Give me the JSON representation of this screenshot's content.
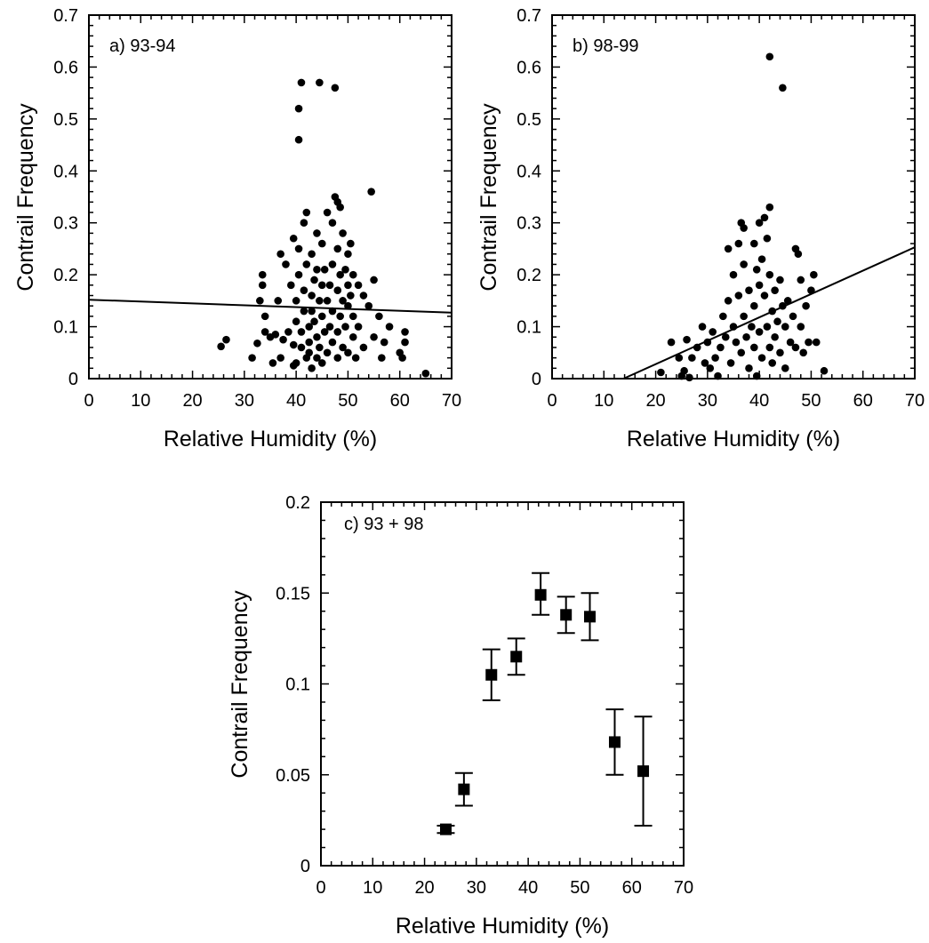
{
  "chart_data": [
    {
      "type": "scatter",
      "panel_label": "a) 93-94",
      "xlabel": "Relative Humidity (%)",
      "ylabel": "Contrail Frequency",
      "xlim": [
        0,
        70
      ],
      "ylim": [
        0,
        0.7
      ],
      "xticks": [
        "0",
        "10",
        "20",
        "30",
        "40",
        "50",
        "60",
        "70"
      ],
      "yticks": [
        "0",
        "0.1",
        "0.2",
        "0.3",
        "0.4",
        "0.5",
        "0.6",
        "0.7"
      ],
      "fit_line": {
        "x": [
          0,
          70
        ],
        "y": [
          0.152,
          0.127
        ]
      },
      "points": [
        [
          25.5,
          0.062
        ],
        [
          26.5,
          0.075
        ],
        [
          31.5,
          0.04
        ],
        [
          32.5,
          0.068
        ],
        [
          33,
          0.15
        ],
        [
          33.5,
          0.18
        ],
        [
          33.5,
          0.2
        ],
        [
          34,
          0.09
        ],
        [
          34,
          0.12
        ],
        [
          35,
          0.08
        ],
        [
          35.5,
          0.03
        ],
        [
          36,
          0.085
        ],
        [
          36.5,
          0.15
        ],
        [
          37,
          0.24
        ],
        [
          37,
          0.04
        ],
        [
          37.5,
          0.075
        ],
        [
          38,
          0.22
        ],
        [
          38.5,
          0.09
        ],
        [
          39,
          0.18
        ],
        [
          39.5,
          0.27
        ],
        [
          39.5,
          0.065
        ],
        [
          39.5,
          0.025
        ],
        [
          40,
          0.15
        ],
        [
          40,
          0.11
        ],
        [
          40,
          0.03
        ],
        [
          40.5,
          0.2
        ],
        [
          40.5,
          0.25
        ],
        [
          40.5,
          0.46
        ],
        [
          40.5,
          0.52
        ],
        [
          41,
          0.57
        ],
        [
          41,
          0.06
        ],
        [
          41,
          0.09
        ],
        [
          41.5,
          0.3
        ],
        [
          41.5,
          0.17
        ],
        [
          41.5,
          0.13
        ],
        [
          42,
          0.32
        ],
        [
          42,
          0.22
        ],
        [
          42,
          0.04
        ],
        [
          42.5,
          0.1
        ],
        [
          42.5,
          0.07
        ],
        [
          42.5,
          0.05
        ],
        [
          43,
          0.16
        ],
        [
          43,
          0.24
        ],
        [
          43,
          0.13
        ],
        [
          43,
          0.02
        ],
        [
          43.5,
          0.19
        ],
        [
          43.5,
          0.11
        ],
        [
          44,
          0.28
        ],
        [
          44,
          0.21
        ],
        [
          44,
          0.08
        ],
        [
          44,
          0.04
        ],
        [
          44.5,
          0.57
        ],
        [
          44.5,
          0.15
        ],
        [
          44.5,
          0.06
        ],
        [
          45,
          0.26
        ],
        [
          45,
          0.18
        ],
        [
          45,
          0.12
        ],
        [
          45,
          0.03
        ],
        [
          45.5,
          0.21
        ],
        [
          45.5,
          0.09
        ],
        [
          46,
          0.32
        ],
        [
          46,
          0.15
        ],
        [
          46,
          0.05
        ],
        [
          46.5,
          0.1
        ],
        [
          46.5,
          0.18
        ],
        [
          47,
          0.3
        ],
        [
          47,
          0.22
        ],
        [
          47,
          0.13
        ],
        [
          47,
          0.07
        ],
        [
          47.5,
          0.56
        ],
        [
          47.5,
          0.35
        ],
        [
          48,
          0.34
        ],
        [
          48,
          0.25
        ],
        [
          48,
          0.17
        ],
        [
          48,
          0.09
        ],
        [
          48,
          0.04
        ],
        [
          48.5,
          0.33
        ],
        [
          48.5,
          0.2
        ],
        [
          48.5,
          0.12
        ],
        [
          49,
          0.28
        ],
        [
          49,
          0.15
        ],
        [
          49,
          0.06
        ],
        [
          49.5,
          0.21
        ],
        [
          49.5,
          0.1
        ],
        [
          50,
          0.24
        ],
        [
          50,
          0.18
        ],
        [
          50,
          0.14
        ],
        [
          50,
          0.05
        ],
        [
          50.5,
          0.26
        ],
        [
          50.5,
          0.16
        ],
        [
          51,
          0.2
        ],
        [
          51,
          0.12
        ],
        [
          51,
          0.08
        ],
        [
          51.5,
          0.04
        ],
        [
          52,
          0.18
        ],
        [
          52,
          0.1
        ],
        [
          53,
          0.16
        ],
        [
          53,
          0.06
        ],
        [
          54,
          0.14
        ],
        [
          54.5,
          0.36
        ],
        [
          55,
          0.08
        ],
        [
          55,
          0.19
        ],
        [
          56,
          0.12
        ],
        [
          56.5,
          0.04
        ],
        [
          57,
          0.07
        ],
        [
          58,
          0.1
        ],
        [
          60,
          0.05
        ],
        [
          60.5,
          0.04
        ],
        [
          61,
          0.07
        ],
        [
          61,
          0.09
        ],
        [
          65,
          0.01
        ]
      ]
    },
    {
      "type": "scatter",
      "panel_label": "b) 98-99",
      "xlabel": "Relative Humidity (%)",
      "ylabel": "Contrail Frequency",
      "xlim": [
        0,
        70
      ],
      "ylim": [
        0,
        0.7
      ],
      "xticks": [
        "0",
        "10",
        "20",
        "30",
        "40",
        "50",
        "60",
        "70"
      ],
      "yticks": [
        "0",
        "0.1",
        "0.2",
        "0.3",
        "0.4",
        "0.5",
        "0.6",
        "0.7"
      ],
      "fit_line": {
        "x": [
          13.8,
          70
        ],
        "y": [
          0,
          0.253
        ]
      },
      "points": [
        [
          21,
          0.012
        ],
        [
          23,
          0.07
        ],
        [
          24.5,
          0.04
        ],
        [
          25,
          0.005
        ],
        [
          25.5,
          0.015
        ],
        [
          26,
          0.075
        ],
        [
          26.5,
          0.002
        ],
        [
          27,
          0.04
        ],
        [
          28,
          0.06
        ],
        [
          29,
          0.1
        ],
        [
          29.5,
          0.03
        ],
        [
          30,
          0.07
        ],
        [
          30.5,
          0.02
        ],
        [
          31,
          0.09
        ],
        [
          31.5,
          0.04
        ],
        [
          32,
          0.005
        ],
        [
          32.5,
          0.06
        ],
        [
          33,
          0.12
        ],
        [
          33.5,
          0.08
        ],
        [
          34,
          0.25
        ],
        [
          34,
          0.15
        ],
        [
          34.5,
          0.03
        ],
        [
          35,
          0.2
        ],
        [
          35,
          0.1
        ],
        [
          35.5,
          0.07
        ],
        [
          36,
          0.26
        ],
        [
          36,
          0.16
        ],
        [
          36.5,
          0.3
        ],
        [
          36.5,
          0.05
        ],
        [
          37,
          0.29
        ],
        [
          37,
          0.22
        ],
        [
          37,
          0.12
        ],
        [
          37.5,
          0.08
        ],
        [
          38,
          0.17
        ],
        [
          38,
          0.02
        ],
        [
          38.5,
          0.1
        ],
        [
          39,
          0.26
        ],
        [
          39,
          0.14
        ],
        [
          39,
          0.06
        ],
        [
          39.5,
          0.21
        ],
        [
          39.5,
          0.005
        ],
        [
          40,
          0.3
        ],
        [
          40,
          0.18
        ],
        [
          40,
          0.09
        ],
        [
          40.5,
          0.23
        ],
        [
          40.5,
          0.04
        ],
        [
          41,
          0.31
        ],
        [
          41,
          0.16
        ],
        [
          41.5,
          0.27
        ],
        [
          41.5,
          0.1
        ],
        [
          42,
          0.62
        ],
        [
          42,
          0.33
        ],
        [
          42,
          0.2
        ],
        [
          42,
          0.06
        ],
        [
          42.5,
          0.13
        ],
        [
          42.5,
          0.03
        ],
        [
          43,
          0.17
        ],
        [
          43,
          0.08
        ],
        [
          43.5,
          0.11
        ],
        [
          44,
          0.19
        ],
        [
          44,
          0.05
        ],
        [
          44.5,
          0.56
        ],
        [
          44.5,
          0.14
        ],
        [
          45,
          0.1
        ],
        [
          45,
          0.02
        ],
        [
          45.5,
          0.15
        ],
        [
          46,
          0.07
        ],
        [
          46.5,
          0.12
        ],
        [
          47,
          0.25
        ],
        [
          47,
          0.06
        ],
        [
          47.5,
          0.24
        ],
        [
          48,
          0.19
        ],
        [
          48,
          0.1
        ],
        [
          48.5,
          0.05
        ],
        [
          49,
          0.14
        ],
        [
          49.5,
          0.07
        ],
        [
          50,
          0.17
        ],
        [
          50.5,
          0.2
        ],
        [
          51,
          0.07
        ],
        [
          52.5,
          0.015
        ]
      ]
    },
    {
      "type": "scatter",
      "panel_label": "c) 93 + 98",
      "xlabel": "Relative Humidity (%)",
      "ylabel": "Contrail Frequency",
      "xlim": [
        0,
        70
      ],
      "ylim": [
        0,
        0.2
      ],
      "xticks": [
        "0",
        "10",
        "20",
        "30",
        "40",
        "50",
        "60",
        "70"
      ],
      "yticks": [
        "0",
        "0.05",
        "0.1",
        "0.15",
        "0.2"
      ],
      "points": [
        {
          "x": 24.1,
          "y": 0.02,
          "low": 0.018,
          "high": 0.022
        },
        {
          "x": 27.6,
          "y": 0.042,
          "low": 0.033,
          "high": 0.051
        },
        {
          "x": 32.9,
          "y": 0.105,
          "low": 0.091,
          "high": 0.119
        },
        {
          "x": 37.7,
          "y": 0.115,
          "low": 0.105,
          "high": 0.125
        },
        {
          "x": 42.4,
          "y": 0.149,
          "low": 0.138,
          "high": 0.161
        },
        {
          "x": 47.3,
          "y": 0.138,
          "low": 0.128,
          "high": 0.148
        },
        {
          "x": 51.9,
          "y": 0.137,
          "low": 0.124,
          "high": 0.15
        },
        {
          "x": 56.7,
          "y": 0.068,
          "low": 0.05,
          "high": 0.086
        },
        {
          "x": 62.2,
          "y": 0.052,
          "low": 0.022,
          "high": 0.082
        }
      ]
    }
  ]
}
